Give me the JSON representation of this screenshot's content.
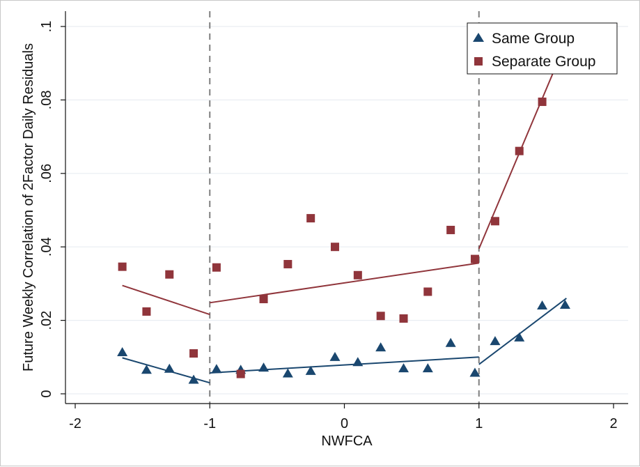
{
  "chart_data": {
    "type": "scatter",
    "xlabel": "NWFCA",
    "ylabel": "Future Weekly Correlation of 2Factor Daily Residuals",
    "xlim": [
      -2,
      2
    ],
    "ylim": [
      0,
      0.1
    ],
    "x_ticks": [
      -2,
      -1,
      0,
      1,
      2
    ],
    "x_tick_labels": [
      "-2",
      "-1",
      "0",
      "1",
      "2"
    ],
    "y_ticks": [
      0,
      0.02,
      0.04,
      0.06,
      0.08,
      0.1
    ],
    "y_tick_labels": [
      "0",
      ".02",
      ".04",
      ".06",
      ".08",
      ".1"
    ],
    "grid": "horizontal",
    "legend_position": "top-right",
    "reference_lines_x": [
      -1,
      1
    ],
    "series": [
      {
        "name": "Same Group",
        "marker": "triangle",
        "color": "#1a476f",
        "points": [
          [
            -1.65,
            0.0112
          ],
          [
            -1.47,
            0.0064
          ],
          [
            -1.3,
            0.0067
          ],
          [
            -1.12,
            0.0037
          ],
          [
            -0.95,
            0.0066
          ],
          [
            -0.77,
            0.0064
          ],
          [
            -0.6,
            0.007
          ],
          [
            -0.42,
            0.0054
          ],
          [
            -0.25,
            0.0061
          ],
          [
            -0.07,
            0.0099
          ],
          [
            0.1,
            0.0085
          ],
          [
            0.27,
            0.0125
          ],
          [
            0.44,
            0.0068
          ],
          [
            0.62,
            0.0068
          ],
          [
            0.79,
            0.0137
          ],
          [
            0.97,
            0.0056
          ],
          [
            1.12,
            0.0142
          ],
          [
            1.3,
            0.0152
          ],
          [
            1.47,
            0.0239
          ],
          [
            1.64,
            0.0241
          ]
        ],
        "fit_segments": [
          [
            [
              -1.65,
              0.0098
            ],
            [
              -1.0,
              0.003
            ]
          ],
          [
            [
              -1.0,
              0.0057
            ],
            [
              1.0,
              0.01
            ]
          ],
          [
            [
              1.0,
              0.008
            ],
            [
              1.65,
              0.026
            ]
          ]
        ]
      },
      {
        "name": "Separate Group",
        "marker": "square",
        "color": "#90353b",
        "points": [
          [
            -1.65,
            0.0346
          ],
          [
            -1.47,
            0.0224
          ],
          [
            -1.3,
            0.0325
          ],
          [
            -1.12,
            0.011
          ],
          [
            -0.95,
            0.0344
          ],
          [
            -0.77,
            0.0054
          ],
          [
            -0.6,
            0.0258
          ],
          [
            -0.42,
            0.0353
          ],
          [
            -0.25,
            0.0478
          ],
          [
            -0.07,
            0.04
          ],
          [
            0.1,
            0.0323
          ],
          [
            0.27,
            0.0212
          ],
          [
            0.44,
            0.0205
          ],
          [
            0.62,
            0.0278
          ],
          [
            0.79,
            0.0446
          ],
          [
            0.97,
            0.0367
          ],
          [
            1.12,
            0.047
          ],
          [
            1.3,
            0.0661
          ],
          [
            1.47,
            0.0795
          ],
          [
            1.64,
            0.095
          ]
        ],
        "fit_segments": [
          [
            [
              -1.65,
              0.0295
            ],
            [
              -1.0,
              0.0216
            ]
          ],
          [
            [
              -1.0,
              0.0248
            ],
            [
              1.0,
              0.0356
            ]
          ],
          [
            [
              1.0,
              0.0395
            ],
            [
              1.65,
              0.096
            ]
          ]
        ]
      }
    ]
  }
}
